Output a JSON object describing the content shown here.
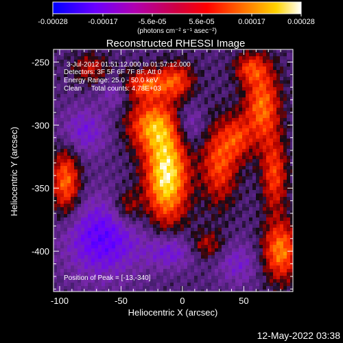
{
  "colorbar": {
    "tick_labels": [
      "-0.00028",
      "-0.00017",
      "-5.6e-05",
      "5.6e-05",
      "0.00017",
      "0.00028"
    ],
    "unit_label": "(photons cm⁻² s⁻¹ asec⁻²)",
    "range": [
      -0.00028,
      0.00028
    ]
  },
  "title": "Reconstructed RHESSI Image",
  "info": {
    "time_range": "3-Jul-2012 01:51:12.000 to 01:57:12.000",
    "detectors": "Detectors: 3F 5F 6F 7F 8F, Att 0",
    "energy_range": "Energy Range: 25.0 - 50.0 keV",
    "algorithm_counts": "Clean     Total counts: 4.78E+03",
    "peak": "Position of Peak = [-13,-340]"
  },
  "axes": {
    "xlabel": "Heliocentric X (arcsec)",
    "ylabel": "Heliocentric Y (arcsec)",
    "xlim": [
      -105,
      90
    ],
    "ylim": [
      -432,
      -240
    ],
    "xticks": [
      -100,
      -50,
      0,
      50
    ],
    "yticks": [
      -250,
      -300,
      -350,
      -400
    ]
  },
  "timestamp": "12-May-2022 03:38",
  "colors": {
    "background": "#000000",
    "foreground": "#ffffff"
  }
}
